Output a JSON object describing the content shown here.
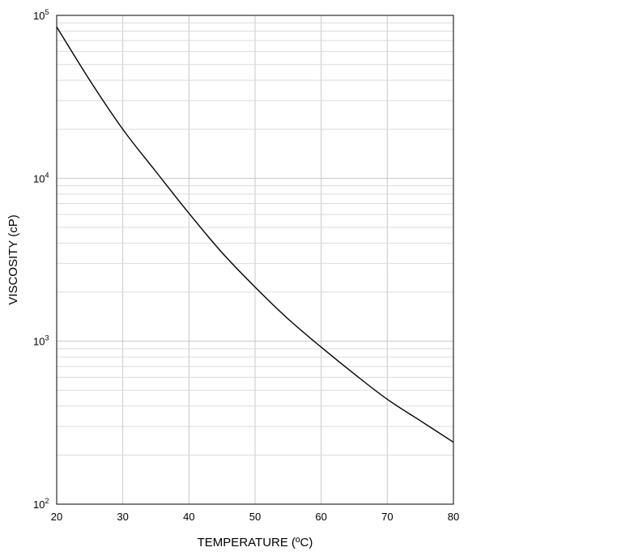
{
  "chart_data": {
    "type": "line",
    "title": "",
    "xlabel": "TEMPERATURE (ºC)",
    "ylabel": "VISCOSITY (cP)",
    "xlim": [
      20,
      80
    ],
    "ylim": [
      100,
      100000
    ],
    "yscale": "log",
    "grid": true,
    "x_ticks": [
      "20",
      "30",
      "40",
      "50",
      "60",
      "70",
      "80"
    ],
    "y_ticks": [
      {
        "base": "10",
        "exp": "2",
        "value": 100
      },
      {
        "base": "10",
        "exp": "3",
        "value": 1000
      },
      {
        "base": "10",
        "exp": "4",
        "value": 10000
      },
      {
        "base": "10",
        "exp": "5",
        "value": 100000
      }
    ],
    "series": [
      {
        "x": [
          20,
          25,
          30,
          35,
          40,
          45,
          50,
          55,
          60,
          65,
          70,
          75,
          80
        ],
        "y": [
          85000,
          40000,
          20000,
          11000,
          6100,
          3500,
          2150,
          1370,
          920,
          630,
          440,
          325,
          240
        ]
      }
    ]
  }
}
